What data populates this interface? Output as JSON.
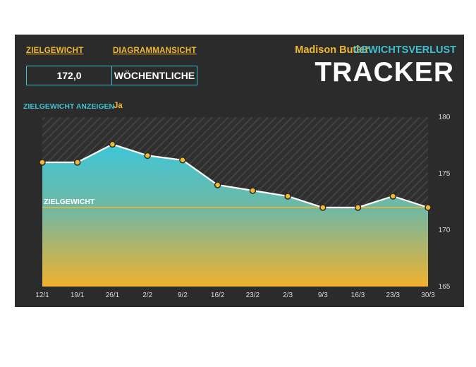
{
  "header": {
    "goal_label": "ZIELGEWICHT",
    "view_label": "DIAGRAMMANSICHT",
    "goal_value": "172,0",
    "view_value": "WÖCHENTLICHE",
    "name": "Madison Butler",
    "subtitle": "GEWICHTSVERLUST",
    "title": "TRACKER",
    "show_goal_label": "ZIELGEWICHT ANZEIGEN",
    "show_goal_value": "Ja"
  },
  "colors": {
    "background": "#2b2b2b",
    "accent_orange": "#f2b830",
    "accent_teal": "#3fc0d0",
    "line": "#ffffff",
    "goal_line": "#f2b830"
  },
  "chart_data": {
    "type": "area",
    "categories": [
      "12/1",
      "19/1",
      "26/1",
      "2/2",
      "9/2",
      "16/2",
      "23/2",
      "2/3",
      "9/3",
      "16/3",
      "23/3",
      "30/3"
    ],
    "values": [
      176,
      176,
      177.6,
      176.6,
      176.2,
      174,
      173.5,
      173,
      172,
      172,
      173,
      172
    ],
    "ylim": [
      165,
      180
    ],
    "yticks": [
      165,
      170,
      175,
      180
    ],
    "goal": 172,
    "goal_label": "ZIELGEWICHT",
    "grid": false,
    "y_axis_position": "right"
  }
}
